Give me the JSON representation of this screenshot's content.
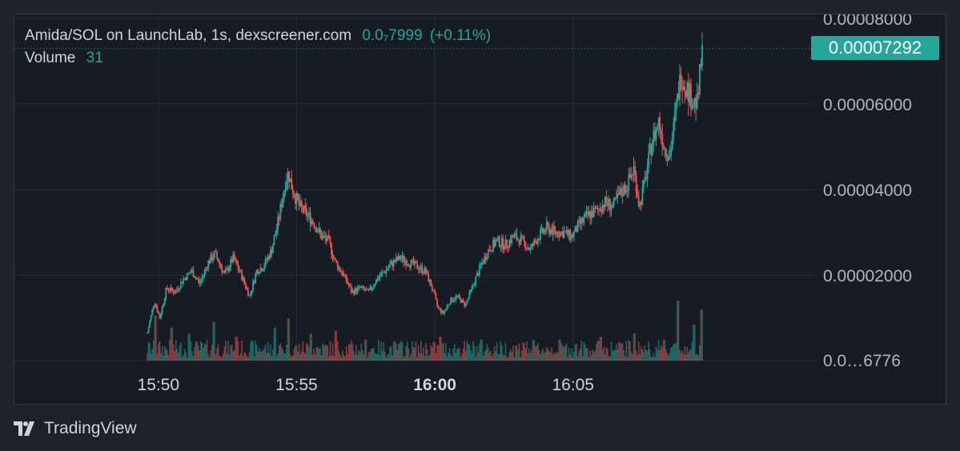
{
  "header": {
    "pair_info": "Amida/SOL on LaunchLab, 1s, dexscreener.com",
    "last_price": "0.0₇7999",
    "change": "(+0.11%)",
    "volume_label": "Volume",
    "volume_value": "31"
  },
  "price_tag": "0.00007292",
  "brand": {
    "name": "TradingView",
    "icon": "tradingview-logo-icon"
  },
  "colors": {
    "up": "#26a69a",
    "down": "#ef5350",
    "background": "#171b23",
    "grid": "#242933"
  },
  "chart_data": {
    "type": "candlestick",
    "y_ticks": [
      "0.00008000",
      "0.00006000",
      "0.00004000",
      "0.00002000"
    ],
    "volume_tick": "0.0…6776",
    "x_ticks": [
      {
        "label": "15:50",
        "bold": false
      },
      {
        "label": "15:55",
        "bold": false
      },
      {
        "label": "16:00",
        "bold": true
      },
      {
        "label": "16:05",
        "bold": false
      }
    ],
    "ylim": [
      0,
      8e-05
    ],
    "price_series_minutes": [
      [
        0.0,
        6.5e-06
      ],
      [
        0.25,
        1.4e-05
      ],
      [
        0.45,
        1e-05
      ],
      [
        0.7,
        1.7e-05
      ],
      [
        1.0,
        1.6e-05
      ],
      [
        1.3,
        1.9e-05
      ],
      [
        1.6,
        2.1e-05
      ],
      [
        1.9,
        1.8e-05
      ],
      [
        2.2,
        2.3e-05
      ],
      [
        2.45,
        2.5e-05
      ],
      [
        2.8,
        2e-05
      ],
      [
        3.1,
        2.4e-05
      ],
      [
        3.4,
        2e-05
      ],
      [
        3.7,
        1.5e-05
      ],
      [
        3.95,
        2.1e-05
      ],
      [
        4.2,
        2.2e-05
      ],
      [
        4.5,
        2.6e-05
      ],
      [
        4.75,
        3.3e-05
      ],
      [
        5.0,
        4.2e-05
      ],
      [
        5.1,
        4.4e-05
      ],
      [
        5.25,
        4e-05
      ],
      [
        5.5,
        3.6e-05
      ],
      [
        5.8,
        3.4e-05
      ],
      [
        6.05,
        3.2e-05
      ],
      [
        6.3,
        2.9e-05
      ],
      [
        6.55,
        2.8e-05
      ],
      [
        6.8,
        2.3e-05
      ],
      [
        7.1,
        2e-05
      ],
      [
        7.4,
        1.6e-05
      ],
      [
        7.7,
        1.7e-05
      ],
      [
        8.0,
        1.6e-05
      ],
      [
        8.3,
        1.9e-05
      ],
      [
        8.6,
        2.1e-05
      ],
      [
        8.9,
        2.3e-05
      ],
      [
        9.15,
        2.4e-05
      ],
      [
        9.45,
        2.3e-05
      ],
      [
        9.75,
        2.2e-05
      ],
      [
        10.05,
        2.1e-05
      ],
      [
        10.3,
        1.7e-05
      ],
      [
        10.5,
        1.25e-05
      ],
      [
        10.7,
        1.1e-05
      ],
      [
        10.95,
        1.4e-05
      ],
      [
        11.2,
        1.5e-05
      ],
      [
        11.5,
        1.3e-05
      ],
      [
        11.75,
        1.7e-05
      ],
      [
        12.05,
        2.2e-05
      ],
      [
        12.35,
        2.6e-05
      ],
      [
        12.65,
        2.8e-05
      ],
      [
        12.95,
        2.7e-05
      ],
      [
        13.25,
        2.9e-05
      ],
      [
        13.55,
        2.8e-05
      ],
      [
        13.85,
        2.6e-05
      ],
      [
        14.15,
        2.9e-05
      ],
      [
        14.45,
        3.1e-05
      ],
      [
        14.75,
        3e-05
      ],
      [
        15.05,
        3e-05
      ],
      [
        15.35,
        2.9e-05
      ],
      [
        15.65,
        3.2e-05
      ],
      [
        15.95,
        3.4e-05
      ],
      [
        16.25,
        3.5e-05
      ],
      [
        16.55,
        3.7e-05
      ],
      [
        16.85,
        3.6e-05
      ],
      [
        17.1,
        3.9e-05
      ],
      [
        17.35,
        4.1e-05
      ],
      [
        17.6,
        4.5e-05
      ],
      [
        17.8,
        3.6e-05
      ],
      [
        18.0,
        4.2e-05
      ],
      [
        18.25,
        5.1e-05
      ],
      [
        18.5,
        5.6e-05
      ],
      [
        18.7,
        5e-05
      ],
      [
        18.9,
        4.8e-05
      ],
      [
        19.05,
        5.5e-05
      ],
      [
        19.15,
        6e-05
      ],
      [
        19.3,
        6.7e-05
      ],
      [
        19.5,
        6.4e-05
      ],
      [
        19.7,
        6.1e-05
      ],
      [
        19.9,
        6e-05
      ],
      [
        20.0,
        6.8e-05
      ],
      [
        20.1,
        7.29e-05
      ]
    ],
    "volume_series_minutes": [
      [
        0.3,
        0.75
      ],
      [
        0.9,
        0.55
      ],
      [
        1.5,
        0.45
      ],
      [
        2.4,
        0.65
      ],
      [
        3.2,
        0.4
      ],
      [
        4.6,
        0.55
      ],
      [
        5.1,
        0.7
      ],
      [
        5.9,
        0.45
      ],
      [
        6.8,
        0.5
      ],
      [
        7.9,
        0.35
      ],
      [
        9.2,
        0.3
      ],
      [
        10.6,
        0.4
      ],
      [
        12.1,
        0.35
      ],
      [
        13.6,
        0.3
      ],
      [
        14.9,
        0.35
      ],
      [
        16.4,
        0.4
      ],
      [
        17.6,
        0.45
      ],
      [
        18.7,
        0.35
      ],
      [
        19.2,
        1.0
      ],
      [
        19.8,
        0.6
      ],
      [
        20.05,
        0.85
      ]
    ]
  }
}
